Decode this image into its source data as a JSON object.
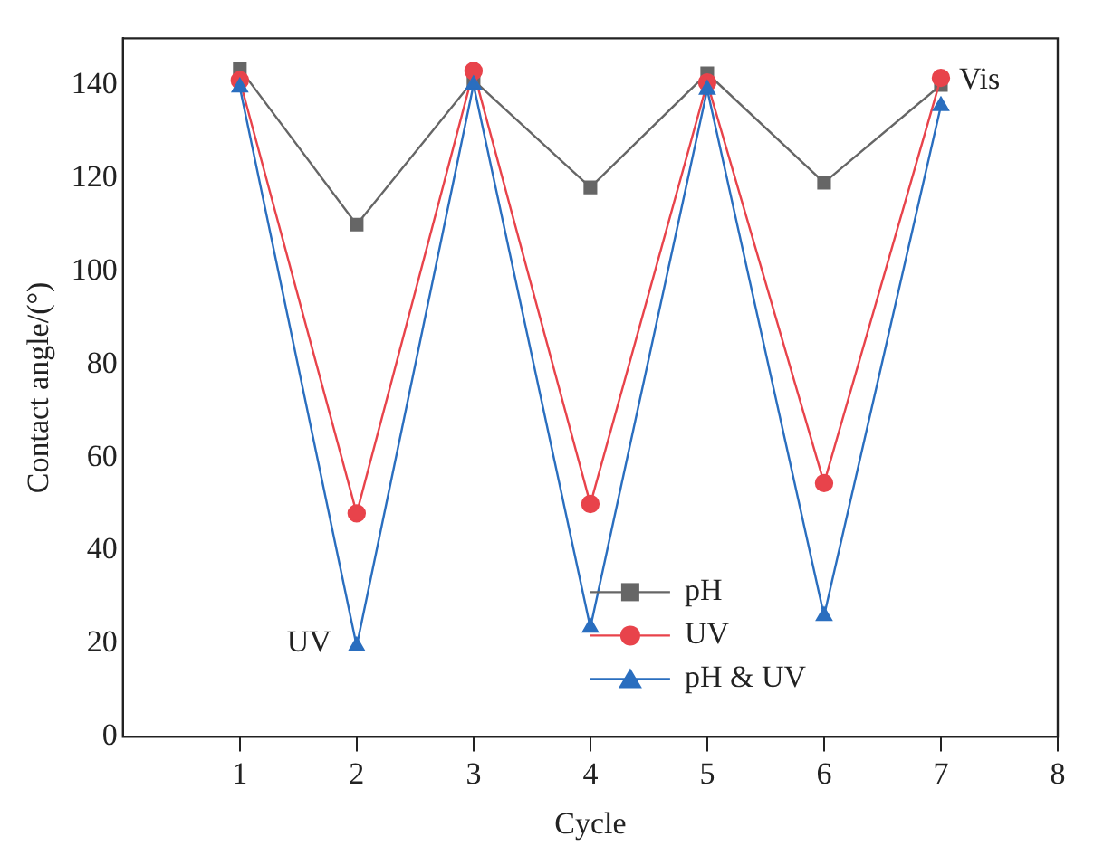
{
  "chart_data": {
    "type": "line",
    "xlabel": "Cycle",
    "ylabel": "Contact angle/(°)",
    "x": [
      1,
      2,
      3,
      4,
      5,
      6,
      7
    ],
    "xlim": [
      0,
      8
    ],
    "xticks": [
      1,
      2,
      3,
      4,
      5,
      6,
      7,
      8
    ],
    "ylim": [
      0,
      150
    ],
    "yticks": [
      0,
      20,
      40,
      60,
      80,
      100,
      120,
      140
    ],
    "grid": false,
    "legend": "bottom right",
    "line_style": "solid",
    "series": [
      {
        "name": "pH",
        "color": "#666666",
        "marker": "square",
        "values": [
          143.5,
          110,
          141,
          118,
          142.5,
          119,
          140
        ]
      },
      {
        "name": "UV",
        "color": "#e8434b",
        "marker": "circle",
        "values": [
          141,
          48,
          143,
          50,
          140.5,
          54.5,
          141.5
        ]
      },
      {
        "name": "pH & UV",
        "color": "#2a6ebf",
        "marker": "triangle",
        "values": [
          139.5,
          19.5,
          140,
          23.5,
          139,
          26,
          135.5
        ]
      }
    ],
    "annotations": [
      {
        "text": "UV",
        "x": 2,
        "y": 20
      },
      {
        "text": "Vis",
        "x": 7,
        "y": 141
      }
    ]
  }
}
